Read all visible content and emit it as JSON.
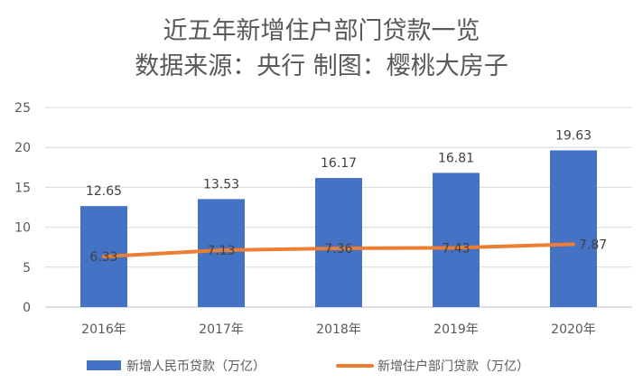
{
  "chart_data": {
    "type": "bar",
    "title": "近五年新增住户部门贷款一览",
    "subtitle": "数据来源：央行 制图：樱桃大房子",
    "categories": [
      "2016年",
      "2017年",
      "2018年",
      "2019年",
      "2020年"
    ],
    "series": [
      {
        "name": "新增人民币贷款（万亿）",
        "type": "bar",
        "color": "#4472C4",
        "values": [
          12.65,
          13.53,
          16.17,
          16.81,
          19.63
        ]
      },
      {
        "name": "新增住户部门贷款（万亿）",
        "type": "line",
        "color": "#ED7D31",
        "values": [
          6.33,
          7.13,
          7.36,
          7.43,
          7.87
        ]
      }
    ],
    "ylim": [
      0,
      25
    ],
    "yticks": [
      0,
      5,
      10,
      15,
      20,
      25
    ],
    "xlabel": "",
    "ylabel": "",
    "grid": true,
    "legend": "bottom"
  }
}
